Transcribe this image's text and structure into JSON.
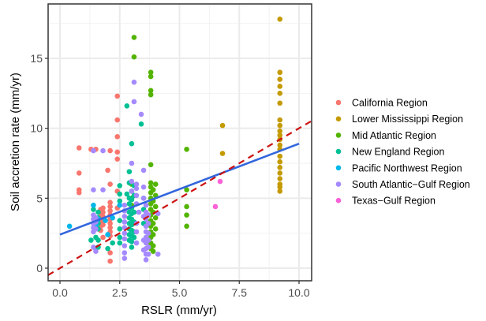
{
  "chart_data": {
    "type": "scatter",
    "title": "",
    "xlabel": "RSLR (mm/yr)",
    "ylabel": "Soil accretion rate (mm/yr)",
    "xlim": [
      -0.5,
      10.5
    ],
    "ylim": [
      -0.8,
      18.2
    ],
    "x_ticks": [
      0.0,
      2.5,
      5.0,
      7.5,
      10.0
    ],
    "x_tick_labels": [
      "0.0",
      "2.5",
      "5.0",
      "7.5",
      "10.0"
    ],
    "y_ticks": [
      0,
      5,
      10,
      15
    ],
    "y_tick_labels": [
      "0",
      "5",
      "10",
      "15"
    ],
    "grid": true,
    "legend_position": "right",
    "series": [
      {
        "name": "California Region",
        "color": "#F8766D",
        "points": [
          [
            0.8,
            8.6
          ],
          [
            0.8,
            6.8
          ],
          [
            0.8,
            5.6
          ],
          [
            0.8,
            5.4
          ],
          [
            1.3,
            8.5
          ],
          [
            1.5,
            8.5
          ],
          [
            1.7,
            4.2
          ],
          [
            1.7,
            3.9
          ],
          [
            1.7,
            3.6
          ],
          [
            1.7,
            3.3
          ],
          [
            1.7,
            3.0
          ],
          [
            1.7,
            2.7
          ],
          [
            1.8,
            4.3
          ],
          [
            1.8,
            4.0
          ],
          [
            1.8,
            3.7
          ],
          [
            1.8,
            3.4
          ],
          [
            1.8,
            3.1
          ],
          [
            1.8,
            2.2
          ],
          [
            2.0,
            7.0
          ],
          [
            2.1,
            8.4
          ],
          [
            2.1,
            6.0
          ],
          [
            2.1,
            4.7
          ],
          [
            2.1,
            4.4
          ],
          [
            2.1,
            4.1
          ],
          [
            2.1,
            3.8
          ],
          [
            2.1,
            3.5
          ],
          [
            2.1,
            3.2
          ],
          [
            2.1,
            2.9
          ],
          [
            2.1,
            2.6
          ],
          [
            2.1,
            2.3
          ],
          [
            2.1,
            1.1
          ],
          [
            2.1,
            0.5
          ],
          [
            2.4,
            12.3
          ],
          [
            2.4,
            10.6
          ],
          [
            2.4,
            9.4
          ],
          [
            2.4,
            8.3
          ],
          [
            2.4,
            7.8
          ],
          [
            2.4,
            5.5
          ],
          [
            2.4,
            4.3
          ]
        ]
      },
      {
        "name": "Lower Mississippi Region",
        "color": "#C49A00",
        "points": [
          [
            6.8,
            10.2
          ],
          [
            6.8,
            8.2
          ],
          [
            9.2,
            17.8
          ],
          [
            9.2,
            14.0
          ],
          [
            9.2,
            13.5
          ],
          [
            9.2,
            13.0
          ],
          [
            9.2,
            12.5
          ],
          [
            9.2,
            11.8
          ],
          [
            9.2,
            10.6
          ],
          [
            9.2,
            10.2
          ],
          [
            9.2,
            9.8
          ],
          [
            9.2,
            9.5
          ],
          [
            9.2,
            9.2
          ],
          [
            9.2,
            8.8
          ],
          [
            9.2,
            8.5
          ],
          [
            9.2,
            8.0
          ],
          [
            9.2,
            7.6
          ],
          [
            9.2,
            7.2
          ],
          [
            9.2,
            6.8
          ],
          [
            9.2,
            6.4
          ],
          [
            9.2,
            6.0
          ],
          [
            9.2,
            5.8
          ],
          [
            9.2,
            5.5
          ]
        ]
      },
      {
        "name": "Mid Atlantic Region",
        "color": "#53B400",
        "points": [
          [
            3.1,
            16.5
          ],
          [
            3.1,
            15.1
          ],
          [
            3.0,
            6.0
          ],
          [
            3.0,
            5.5
          ],
          [
            3.0,
            5.0
          ],
          [
            3.0,
            4.5
          ],
          [
            3.8,
            14.0
          ],
          [
            3.8,
            13.7
          ],
          [
            3.8,
            12.7
          ],
          [
            3.8,
            12.4
          ],
          [
            3.8,
            7.4
          ],
          [
            3.8,
            6.1
          ],
          [
            3.8,
            5.8
          ],
          [
            3.8,
            5.4
          ],
          [
            3.8,
            5.0
          ],
          [
            3.8,
            4.6
          ],
          [
            3.8,
            4.2
          ],
          [
            3.8,
            3.8
          ],
          [
            3.8,
            3.4
          ],
          [
            3.8,
            3.0
          ],
          [
            3.8,
            2.6
          ],
          [
            3.8,
            2.2
          ],
          [
            3.8,
            1.8
          ],
          [
            3.8,
            1.4
          ],
          [
            3.9,
            5.6
          ],
          [
            3.9,
            4.8
          ],
          [
            3.9,
            4.0
          ],
          [
            3.9,
            3.2
          ],
          [
            3.9,
            2.4
          ],
          [
            3.9,
            1.6
          ],
          [
            3.9,
            1.2
          ],
          [
            4.0,
            6.0
          ],
          [
            4.0,
            5.2
          ],
          [
            4.0,
            4.4
          ],
          [
            4.0,
            3.6
          ],
          [
            4.0,
            2.8
          ],
          [
            5.3,
            8.5
          ],
          [
            5.3,
            5.6
          ],
          [
            5.3,
            4.4
          ],
          [
            5.3,
            3.8
          ],
          [
            5.3,
            3.0
          ]
        ]
      },
      {
        "name": "New England Region",
        "color": "#00C094",
        "points": [
          [
            1.3,
            2.0
          ],
          [
            1.4,
            4.2
          ],
          [
            1.5,
            2.2
          ],
          [
            1.5,
            1.4
          ],
          [
            1.6,
            4.0
          ],
          [
            1.6,
            3.6
          ],
          [
            1.6,
            3.2
          ],
          [
            1.6,
            2.8
          ],
          [
            1.6,
            2.0
          ],
          [
            1.6,
            1.5
          ],
          [
            2.0,
            1.4
          ],
          [
            2.2,
            1.8
          ],
          [
            2.5,
            5.9
          ],
          [
            2.5,
            5.3
          ],
          [
            2.5,
            4.8
          ],
          [
            2.5,
            3.4
          ],
          [
            2.5,
            2.8
          ],
          [
            2.5,
            2.2
          ],
          [
            2.5,
            1.8
          ],
          [
            2.8,
            11.6
          ],
          [
            2.8,
            5.3
          ],
          [
            2.9,
            6.9
          ],
          [
            2.9,
            6.1
          ],
          [
            2.9,
            5.0
          ],
          [
            2.9,
            4.6
          ],
          [
            2.9,
            4.0
          ],
          [
            2.9,
            3.6
          ],
          [
            2.9,
            3.2
          ],
          [
            2.9,
            2.8
          ],
          [
            2.9,
            2.4
          ],
          [
            2.9,
            2.0
          ],
          [
            3.0,
            8.9
          ],
          [
            3.0,
            4.9
          ],
          [
            3.0,
            4.3
          ],
          [
            3.0,
            3.9
          ],
          [
            3.0,
            3.5
          ],
          [
            3.0,
            3.1
          ],
          [
            3.0,
            2.7
          ],
          [
            3.0,
            2.3
          ],
          [
            3.0,
            1.9
          ],
          [
            3.0,
            1.5
          ],
          [
            3.1,
            5.9
          ],
          [
            3.1,
            5.2
          ],
          [
            3.1,
            4.0
          ],
          [
            3.1,
            3.3
          ],
          [
            3.1,
            2.6
          ],
          [
            3.1,
            2.2
          ],
          [
            3.4,
            10.3
          ],
          [
            3.5,
            5.0
          ],
          [
            3.5,
            4.2
          ],
          [
            3.5,
            3.2
          ]
        ]
      },
      {
        "name": "Pacific Northwest Region",
        "color": "#00B6EB",
        "points": [
          [
            0.4,
            3.0
          ],
          [
            1.4,
            4.5
          ],
          [
            1.5,
            3.1
          ],
          [
            1.6,
            3.5
          ],
          [
            1.9,
            3.4
          ],
          [
            2.0,
            2.4
          ],
          [
            2.2,
            3.6
          ],
          [
            2.5,
            4.5
          ]
        ]
      },
      {
        "name": "South Atlantic-Gulf Region",
        "color": "#A58AFF",
        "points": [
          [
            1.4,
            8.4
          ],
          [
            1.4,
            5.6
          ],
          [
            1.4,
            3.8
          ],
          [
            1.4,
            3.5
          ],
          [
            1.4,
            3.2
          ],
          [
            1.4,
            2.9
          ],
          [
            1.4,
            2.6
          ],
          [
            1.4,
            1.5
          ],
          [
            1.5,
            3.6
          ],
          [
            1.5,
            3.3
          ],
          [
            1.5,
            2.8
          ],
          [
            1.5,
            1.2
          ],
          [
            1.8,
            8.4
          ],
          [
            1.8,
            5.6
          ],
          [
            2.7,
            4.5
          ],
          [
            2.7,
            4.1
          ],
          [
            2.7,
            3.7
          ],
          [
            2.7,
            3.3
          ],
          [
            2.7,
            2.9
          ],
          [
            2.7,
            2.5
          ],
          [
            2.7,
            2.1
          ],
          [
            2.7,
            1.6
          ],
          [
            2.7,
            1.1
          ],
          [
            2.7,
            0.7
          ],
          [
            3.0,
            7.5
          ],
          [
            3.0,
            6.2
          ],
          [
            3.0,
            5.5
          ],
          [
            3.1,
            13.3
          ],
          [
            3.1,
            11.9
          ],
          [
            3.2,
            6.0
          ],
          [
            3.2,
            5.7
          ],
          [
            3.2,
            5.2
          ],
          [
            3.2,
            4.6
          ],
          [
            3.2,
            3.2
          ],
          [
            3.2,
            2.6
          ],
          [
            3.2,
            1.8
          ],
          [
            3.3,
            4.0
          ],
          [
            3.4,
            11.0
          ],
          [
            3.5,
            7.0
          ],
          [
            3.5,
            5.8
          ],
          [
            3.5,
            5.0
          ],
          [
            3.5,
            3.7
          ],
          [
            3.5,
            2.0
          ],
          [
            3.5,
            1.3
          ],
          [
            3.6,
            4.5
          ],
          [
            3.6,
            4.0
          ],
          [
            3.6,
            3.5
          ],
          [
            3.6,
            3.0
          ],
          [
            3.6,
            2.6
          ],
          [
            3.6,
            2.2
          ],
          [
            3.6,
            1.8
          ],
          [
            3.6,
            1.4
          ],
          [
            3.6,
            1.0
          ],
          [
            3.6,
            0.6
          ],
          [
            3.7,
            3.8
          ],
          [
            3.7,
            3.2
          ],
          [
            3.7,
            2.5
          ],
          [
            3.7,
            2.0
          ],
          [
            3.7,
            1.5
          ],
          [
            3.7,
            1.0
          ],
          [
            4.1,
            3.9
          ],
          [
            4.1,
            1.0
          ]
        ]
      },
      {
        "name": "Texas-Gulf Region",
        "color": "#FB61D7",
        "points": [
          [
            6.5,
            4.4
          ],
          [
            6.7,
            6.2
          ]
        ]
      }
    ],
    "fit_lines": [
      {
        "name": "linear-fit",
        "color": "#3366DD",
        "style": "solid",
        "x": [
          0.0,
          10.0
        ],
        "y": [
          2.4,
          8.9
        ]
      },
      {
        "name": "one-to-one-line",
        "color": "#CC1111",
        "style": "dashed",
        "x": [
          -0.5,
          10.5
        ],
        "y": [
          -0.5,
          10.5
        ]
      }
    ]
  }
}
